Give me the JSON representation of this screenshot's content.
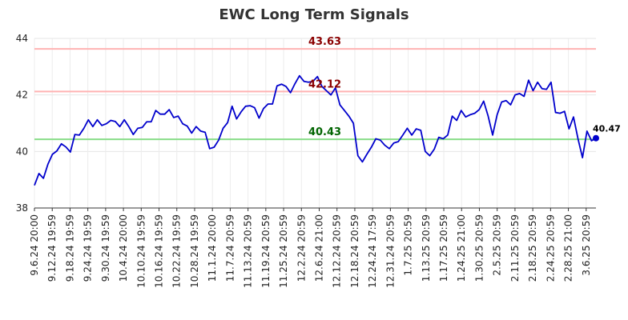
{
  "chart_data": {
    "type": "line",
    "title": "EWC Long Term Signals",
    "xlabel": "",
    "ylabel": "",
    "ylim": [
      38,
      44
    ],
    "yticks": [
      38,
      40,
      42,
      44
    ],
    "grid": true,
    "x_tick_labels": [
      "9.6.24 20:00",
      "9.12.24 19:59",
      "9.18.24 19:59",
      "9.24.24 19:59",
      "9.30.24 19:59",
      "10.4.24 20:00",
      "10.10.24 19:59",
      "10.16.24 19:59",
      "10.22.24 19:59",
      "10.28.24 19:59",
      "11.1.24 20:00",
      "11.7.24 20:59",
      "11.13.24 20:59",
      "11.19.24 20:59",
      "11.25.24 20:59",
      "12.2.24 20:59",
      "12.6.24 21:00",
      "12.12.24 20:59",
      "12.18.24 20:59",
      "12.24.24 17:59",
      "12.31.24 20:59",
      "1.7.25 20:59",
      "1.13.25 20:59",
      "1.17.25 20:59",
      "1.24.25 21:00",
      "1.30.25 20:59",
      "2.5.25 20:59",
      "2.11.25 20:59",
      "2.18.25 20:59",
      "2.24.25 20:59",
      "2.28.25 21:00",
      "3.6.25 20:59"
    ],
    "reference_lines": [
      {
        "value": 43.63,
        "label": "43.63",
        "color": "#ffb3b3",
        "label_color": "#8b0000"
      },
      {
        "value": 42.12,
        "label": "42.12",
        "color": "#ffb3b3",
        "label_color": "#8b0000"
      },
      {
        "value": 40.43,
        "label": "40.43",
        "color": "#88dd88",
        "label_color": "#006400"
      }
    ],
    "series": [
      {
        "color": "#0000cc",
        "values": [
          38.8,
          39.22,
          39.05,
          39.55,
          39.9,
          40.02,
          40.27,
          40.16,
          39.98,
          40.6,
          40.58,
          40.82,
          41.12,
          40.88,
          41.12,
          40.92,
          40.98,
          41.1,
          41.06,
          40.88,
          41.12,
          40.88,
          40.6,
          40.82,
          40.85,
          41.05,
          41.05,
          41.45,
          41.32,
          41.32,
          41.48,
          41.2,
          41.25,
          40.98,
          40.9,
          40.65,
          40.88,
          40.72,
          40.68,
          40.1,
          40.15,
          40.4,
          40.82,
          41.02,
          41.6,
          41.15,
          41.4,
          41.6,
          41.62,
          41.55,
          41.18,
          41.52,
          41.68,
          41.68,
          42.32,
          42.38,
          42.3,
          42.08,
          42.4,
          42.68,
          42.48,
          42.45,
          42.48,
          42.65,
          42.3,
          42.15,
          42.0,
          42.25,
          41.65,
          41.45,
          41.25,
          41.0,
          39.85,
          39.63,
          39.9,
          40.15,
          40.45,
          40.4,
          40.22,
          40.1,
          40.3,
          40.35,
          40.58,
          40.82,
          40.58,
          40.8,
          40.75,
          40.0,
          39.85,
          40.08,
          40.5,
          40.45,
          40.58,
          41.25,
          41.1,
          41.45,
          41.22,
          41.3,
          41.35,
          41.48,
          41.78,
          41.25,
          40.58,
          41.3,
          41.75,
          41.8,
          41.65,
          42.0,
          42.05,
          41.95,
          42.52,
          42.15,
          42.45,
          42.22,
          42.2,
          42.45,
          41.38,
          41.35,
          41.42,
          40.8,
          41.22,
          40.45,
          39.78,
          40.72,
          40.38,
          40.47
        ]
      }
    ],
    "last_value_label": "40.47"
  }
}
